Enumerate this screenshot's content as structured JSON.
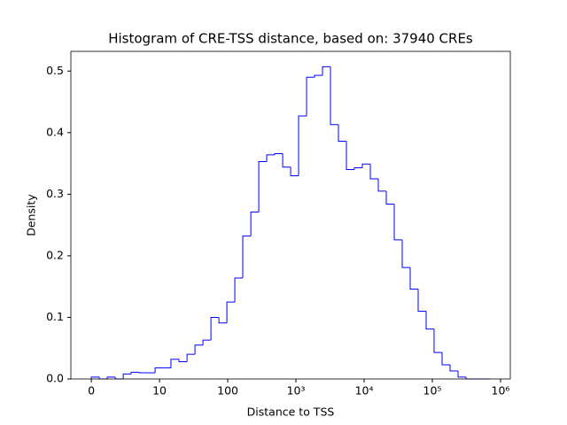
{
  "chart_data": {
    "type": "histogram",
    "title": "Histogram of CRE-TSS distance, based on: 37940 CREs",
    "xlabel": "Distance to TSS",
    "ylabel": "Density",
    "xscale": "symlog",
    "linthresh": 10,
    "color": "#0000ff",
    "bins": [
      0,
      1.17,
      2.34,
      3.51,
      4.68,
      5.84,
      7.01,
      8.18,
      9.35,
      11.3,
      14.7,
      19.3,
      25.3,
      33.1,
      43.3,
      56.7,
      74.2,
      97.1,
      127,
      166,
      218,
      285,
      373,
      488,
      639,
      836,
      1094,
      1432,
      1874,
      2453,
      3210,
      4201,
      5499,
      7196,
      9419,
      12327,
      16134,
      21115,
      27635,
      36168,
      47336,
      61953,
      81084,
      106000,
      139000,
      182000,
      238000,
      311000,
      408000,
      534000,
      699000
    ],
    "values": [
      0.003,
      0,
      0.003,
      0,
      0.008,
      0.011,
      0.01,
      0.01,
      0.018,
      0.018,
      0.032,
      0.028,
      0.04,
      0.055,
      0.063,
      0.1,
      0.091,
      0.125,
      0.164,
      0.232,
      0.271,
      0.353,
      0.364,
      0.366,
      0.344,
      0.33,
      0.427,
      0.49,
      0.493,
      0.507,
      0.413,
      0.386,
      0.34,
      0.343,
      0.349,
      0.325,
      0.305,
      0.284,
      0.226,
      0.181,
      0.146,
      0.11,
      0.081,
      0.043,
      0.023,
      0.013,
      0.003,
      0,
      0,
      0
    ],
    "xlim": [
      -3,
      1390000
    ],
    "xticks": [
      0,
      10,
      100,
      {
        "value": 1000,
        "label": "10³"
      },
      {
        "value": 10000,
        "label": "10⁴"
      },
      {
        "value": 100000,
        "label": "10⁵"
      },
      {
        "value": 1000000,
        "label": "10⁶"
      }
    ],
    "ylim": [
      0,
      0.532
    ],
    "yticks": [
      0.0,
      0.1,
      0.2,
      0.3,
      0.4,
      0.5
    ]
  }
}
